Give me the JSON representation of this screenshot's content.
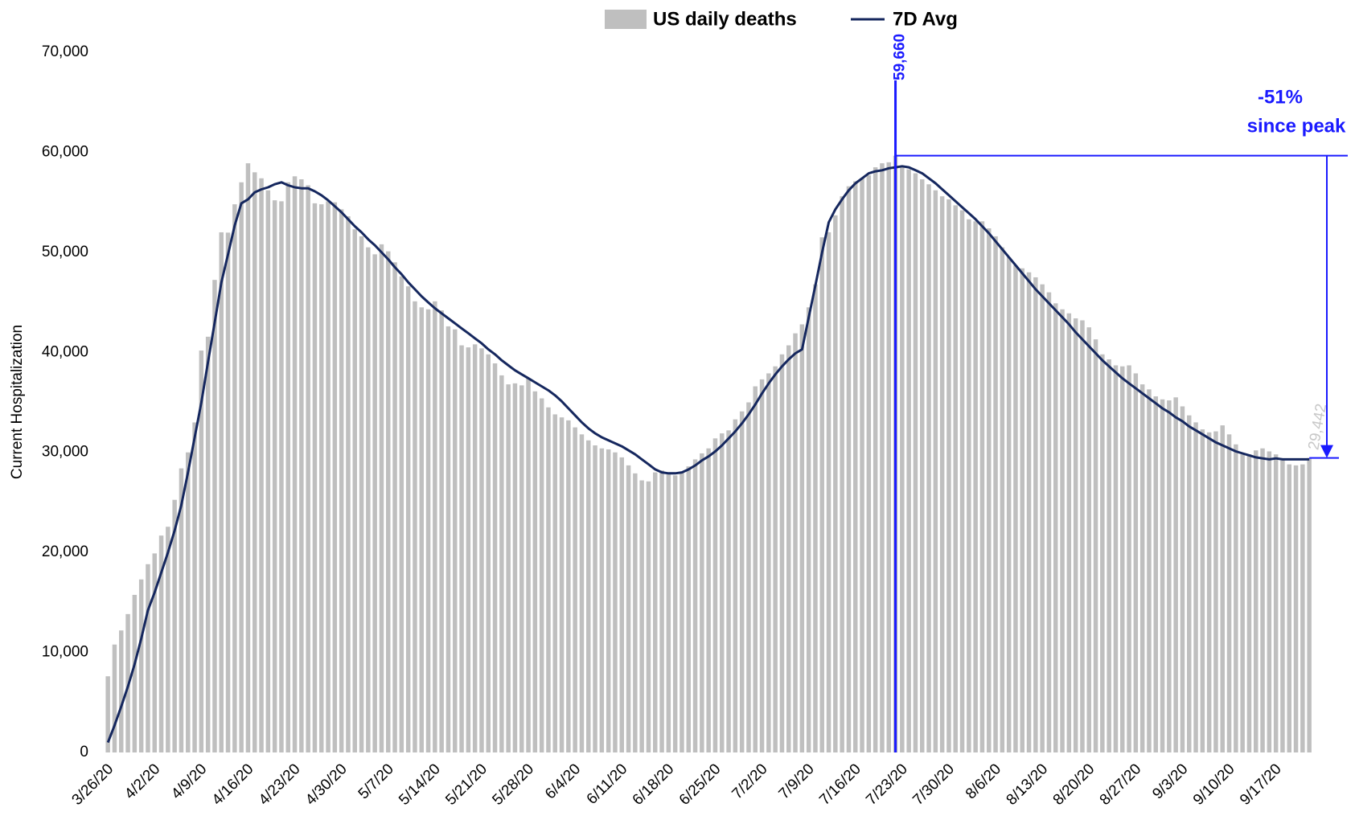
{
  "chart_data": {
    "type": "bar",
    "y_label": "Current Hospitalization",
    "annotations": [
      {
        "text": "59,660"
      },
      {
        "text": "-51%"
      },
      {
        "text": "since peak"
      },
      {
        "text": "29,442"
      }
    ],
    "categories": [
      "3/26/20",
      null,
      null,
      null,
      null,
      null,
      null,
      "4/2/20",
      null,
      null,
      null,
      null,
      null,
      null,
      "4/9/20",
      null,
      null,
      null,
      null,
      null,
      null,
      "4/16/20",
      null,
      null,
      null,
      null,
      null,
      null,
      "4/23/20",
      null,
      null,
      null,
      null,
      null,
      null,
      "4/30/20",
      null,
      null,
      null,
      null,
      null,
      null,
      "5/7/20",
      null,
      null,
      null,
      null,
      null,
      null,
      "5/14/20",
      null,
      null,
      null,
      null,
      null,
      null,
      "5/21/20",
      null,
      null,
      null,
      null,
      null,
      null,
      "5/28/20",
      null,
      null,
      null,
      null,
      null,
      null,
      "6/4/20",
      null,
      null,
      null,
      null,
      null,
      null,
      "6/11/20",
      null,
      null,
      null,
      null,
      null,
      null,
      "6/18/20",
      null,
      null,
      null,
      null,
      null,
      null,
      "6/25/20",
      null,
      null,
      null,
      null,
      null,
      null,
      "7/2/20",
      null,
      null,
      null,
      null,
      null,
      null,
      "7/9/20",
      null,
      null,
      null,
      null,
      null,
      null,
      "7/16/20",
      null,
      null,
      null,
      null,
      null,
      null,
      "7/23/20",
      null,
      null,
      null,
      null,
      null,
      null,
      "7/30/20",
      null,
      null,
      null,
      null,
      null,
      null,
      "8/6/20",
      null,
      null,
      null,
      null,
      null,
      null,
      "8/13/20",
      null,
      null,
      null,
      null,
      null,
      null,
      "8/20/20",
      null,
      null,
      null,
      null,
      null,
      null,
      "8/27/20",
      null,
      null,
      null,
      null,
      null,
      null,
      "9/3/20",
      null,
      null,
      null,
      null,
      null,
      null,
      "9/10/20",
      null,
      null,
      null,
      null,
      null,
      null,
      "9/17/20",
      null,
      null,
      null,
      null,
      null
    ],
    "series": [
      {
        "name": "US daily deaths",
        "color": "#bfbfbf",
        "type": "bar",
        "values": [
          7617,
          10789,
          12200,
          13837,
          15756,
          17300,
          18822,
          19900,
          21684,
          22564,
          25256,
          28400,
          30000,
          32996,
          40181,
          41562,
          47242,
          52000,
          51969,
          54800,
          57000,
          58900,
          58000,
          57400,
          56200,
          55200,
          55100,
          57000,
          57600,
          57300,
          56700,
          54900,
          54800,
          55100,
          55000,
          54300,
          53600,
          52300,
          51600,
          50500,
          49800,
          50800,
          50100,
          49000,
          47600,
          46600,
          45100,
          44500,
          44300,
          45100,
          44200,
          42600,
          42300,
          40700,
          40500,
          40800,
          40400,
          39800,
          38900,
          37700,
          36800,
          36900,
          36700,
          37400,
          36100,
          35400,
          34500,
          33800,
          33500,
          33200,
          32500,
          31800,
          31200,
          30700,
          30400,
          30300,
          30000,
          29500,
          28700,
          27900,
          27200,
          27100,
          28000,
          28200,
          27800,
          27700,
          28000,
          28600,
          29300,
          29900,
          30400,
          31400,
          31900,
          32200,
          33300,
          34100,
          35000,
          36600,
          37300,
          37900,
          38600,
          39800,
          40700,
          41900,
          42800,
          44500,
          46800,
          51500,
          52000,
          53700,
          55600,
          56600,
          57100,
          57400,
          57700,
          58500,
          58900,
          59000,
          59660,
          58600,
          58300,
          57900,
          57300,
          56800,
          56200,
          55600,
          55300,
          54700,
          54200,
          53300,
          53100,
          53100,
          52400,
          51600,
          50500,
          49500,
          48700,
          48400,
          48000,
          47500,
          46800,
          46000,
          44900,
          44300,
          43900,
          43400,
          43200,
          42500,
          41300,
          39800,
          39300,
          38700,
          38600,
          38700,
          37900,
          36800,
          36300,
          35600,
          35300,
          35200,
          35500,
          34600,
          33700,
          33000,
          32300,
          32000,
          32100,
          32700,
          31800,
          30800,
          29800,
          29800,
          30200,
          30400,
          30100,
          29800,
          29200,
          28800,
          28700,
          28800,
          29442
        ]
      },
      {
        "name": "7D Avg",
        "color": "#15275e",
        "type": "line",
        "values": [
          1000,
          2700,
          4600,
          6600,
          8800,
          11400,
          14200,
          16000,
          18000,
          20000,
          22200,
          24700,
          28000,
          31500,
          35000,
          39000,
          43000,
          47000,
          49800,
          52700,
          54900,
          55300,
          56000,
          56300,
          56500,
          56800,
          57000,
          56700,
          56500,
          56400,
          56400,
          56100,
          55700,
          55200,
          54600,
          54000,
          53300,
          52600,
          52000,
          51300,
          50700,
          50000,
          49300,
          48500,
          47800,
          47000,
          46300,
          45600,
          45000,
          44400,
          43900,
          43400,
          42900,
          42400,
          41900,
          41400,
          40900,
          40300,
          39800,
          39200,
          38700,
          38200,
          37800,
          37400,
          37000,
          36600,
          36200,
          35700,
          35100,
          34400,
          33700,
          33000,
          32400,
          31900,
          31500,
          31200,
          30900,
          30600,
          30200,
          29800,
          29300,
          28800,
          28300,
          28000,
          27900,
          27900,
          28000,
          28300,
          28700,
          29200,
          29600,
          30100,
          30700,
          31400,
          32100,
          32900,
          33800,
          34800,
          35900,
          36900,
          37800,
          38600,
          39300,
          39900,
          40300,
          43500,
          46700,
          50000,
          53000,
          54300,
          55300,
          56200,
          56900,
          57400,
          57900,
          58100,
          58200,
          58400,
          58500,
          58600,
          58500,
          58200,
          57900,
          57400,
          56900,
          56300,
          55700,
          55100,
          54500,
          53900,
          53300,
          52600,
          51900,
          51100,
          50300,
          49500,
          48700,
          47900,
          47100,
          46300,
          45600,
          44900,
          44200,
          43500,
          42800,
          42000,
          41300,
          40600,
          39900,
          39200,
          38600,
          38000,
          37400,
          36900,
          36400,
          35900,
          35400,
          34900,
          34400,
          34000,
          33500,
          33100,
          32600,
          32200,
          31800,
          31400,
          31000,
          30700,
          30400,
          30100,
          29900,
          29700,
          29500,
          29400,
          29300,
          29400,
          29300,
          29300,
          29300,
          29300,
          29300
        ]
      }
    ],
    "ylim": [
      0,
      70000
    ],
    "yticks": [
      0,
      {
        "value": 10000,
        "label": "10,000"
      },
      {
        "value": 20000,
        "label": "20,000"
      },
      {
        "value": 30000,
        "label": "30,000"
      },
      {
        "value": 40000,
        "label": "40,000"
      },
      {
        "value": 50000,
        "label": "50,000"
      },
      {
        "value": 60000,
        "label": "60,000"
      },
      {
        "value": 70000,
        "label": "70,000"
      }
    ],
    "grid": false,
    "legend": "top",
    "annotation_color": "#1a1aff"
  }
}
